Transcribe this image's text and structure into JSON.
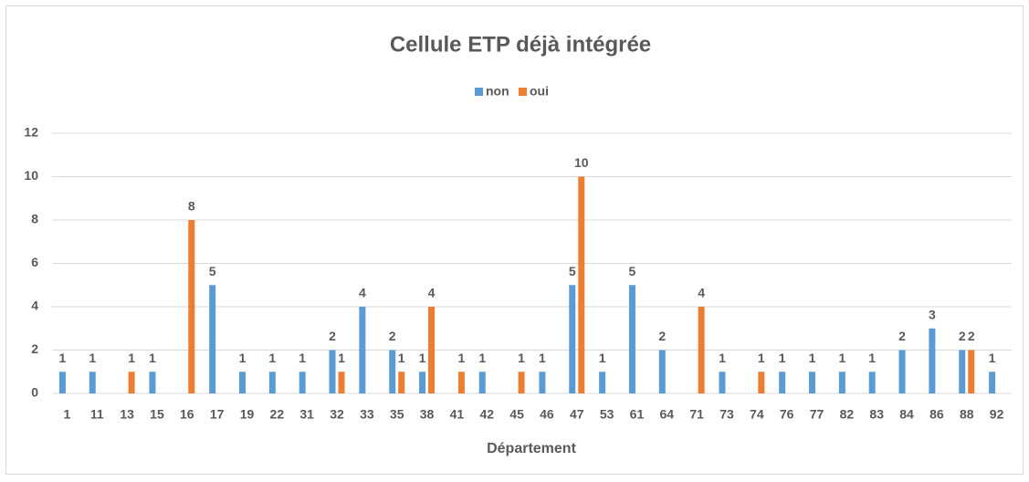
{
  "chart_data": {
    "type": "bar",
    "title": "Cellule ETP déjà  intégrée",
    "x_label": "Département",
    "categories": [
      "1",
      "11",
      "13",
      "15",
      "16",
      "17",
      "19",
      "22",
      "31",
      "32",
      "33",
      "35",
      "38",
      "41",
      "42",
      "45",
      "46",
      "47",
      "53",
      "61",
      "64",
      "71",
      "73",
      "74",
      "76",
      "77",
      "82",
      "83",
      "84",
      "86",
      "88",
      "92"
    ],
    "series": [
      {
        "name": "non",
        "color": "#5b9bd5",
        "values": [
          1,
          1,
          null,
          1,
          null,
          5,
          1,
          1,
          1,
          2,
          4,
          2,
          1,
          null,
          1,
          null,
          1,
          5,
          1,
          5,
          2,
          null,
          1,
          null,
          1,
          1,
          1,
          1,
          2,
          3,
          2,
          1
        ]
      },
      {
        "name": "oui",
        "color": "#ed7d31",
        "values": [
          null,
          null,
          1,
          null,
          8,
          null,
          null,
          null,
          null,
          1,
          null,
          1,
          4,
          1,
          null,
          1,
          null,
          10,
          null,
          null,
          null,
          4,
          null,
          1,
          null,
          null,
          null,
          null,
          null,
          null,
          2,
          null
        ]
      }
    ],
    "ylim": [
      0,
      12
    ],
    "yticks": [
      0,
      2,
      4,
      6,
      8,
      10,
      12
    ],
    "grid": true,
    "legend": "top"
  }
}
